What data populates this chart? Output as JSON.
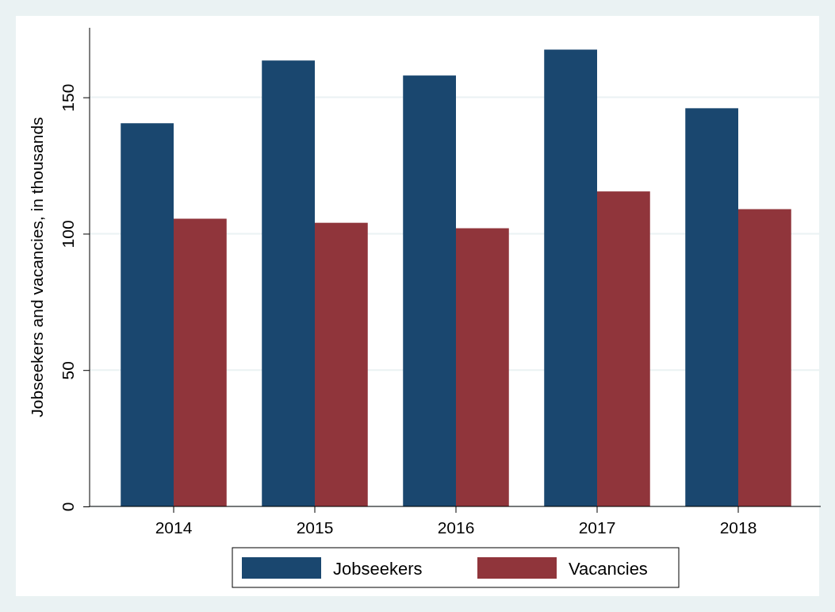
{
  "chart_data": {
    "type": "bar",
    "ylabel": "Jobseekers and vacancies, in thousands",
    "categories": [
      "2014",
      "2015",
      "2016",
      "2017",
      "2018"
    ],
    "series": [
      {
        "name": "Jobseekers",
        "color": "#1a476f",
        "values": [
          140.5,
          163.5,
          158,
          167.5,
          146
        ]
      },
      {
        "name": "Vacancies",
        "color": "#90353b",
        "values": [
          105.5,
          104,
          102,
          115.5,
          109
        ]
      }
    ],
    "ylim": [
      0,
      175.5
    ],
    "yticks": [
      0,
      50,
      100,
      150
    ],
    "grid": "y",
    "legend": "bottom"
  }
}
